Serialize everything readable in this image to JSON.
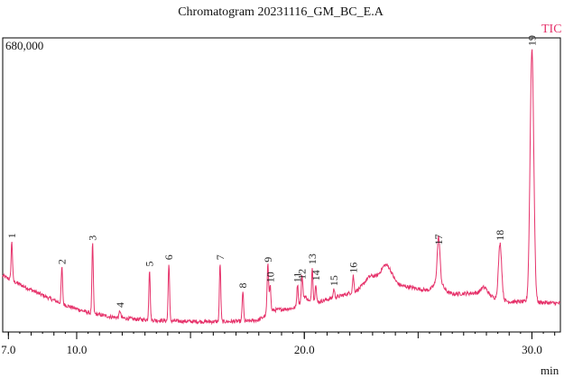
{
  "chart_data": {
    "type": "line",
    "title": "Chromatogram 20231116_GM_BC_E.A",
    "series_name": "TIC",
    "y_max_label": "680,000",
    "xlabel": "min",
    "ylabel": "",
    "xlim": [
      6.75,
      31.25
    ],
    "ylim": [
      0,
      680000
    ],
    "x_ticks": [
      7.0,
      10.0,
      20.0,
      30.0
    ],
    "x_tick_labels": [
      "7.0",
      "10.0",
      "20.0",
      "30.0"
    ],
    "line_color": "#e6336b",
    "baseline": [
      {
        "x": 6.75,
        "y": 130000
      },
      {
        "x": 7.5,
        "y": 110000
      },
      {
        "x": 8.5,
        "y": 85000
      },
      {
        "x": 9.5,
        "y": 62000
      },
      {
        "x": 10.5,
        "y": 45000
      },
      {
        "x": 11.5,
        "y": 35000
      },
      {
        "x": 12.5,
        "y": 30000
      },
      {
        "x": 13.5,
        "y": 27000
      },
      {
        "x": 14.5,
        "y": 25000
      },
      {
        "x": 15.5,
        "y": 24000
      },
      {
        "x": 16.5,
        "y": 24000
      },
      {
        "x": 17.5,
        "y": 25000
      },
      {
        "x": 18.0,
        "y": 28000
      },
      {
        "x": 18.3,
        "y": 38000
      },
      {
        "x": 18.6,
        "y": 50000
      },
      {
        "x": 19.5,
        "y": 55000
      },
      {
        "x": 20.5,
        "y": 68000
      },
      {
        "x": 21.5,
        "y": 82000
      },
      {
        "x": 22.5,
        "y": 98000
      },
      {
        "x": 23.5,
        "y": 110000
      },
      {
        "x": 24.5,
        "y": 105000
      },
      {
        "x": 25.5,
        "y": 95000
      },
      {
        "x": 26.5,
        "y": 88000
      },
      {
        "x": 27.5,
        "y": 90000
      },
      {
        "x": 28.3,
        "y": 80000
      },
      {
        "x": 29.0,
        "y": 70000
      },
      {
        "x": 29.6,
        "y": 70000
      },
      {
        "x": 30.6,
        "y": 68000
      },
      {
        "x": 31.25,
        "y": 66000
      }
    ],
    "humps": [
      {
        "x": 20.0,
        "y": 20000,
        "w": 0.15
      },
      {
        "x": 22.9,
        "y": 25000,
        "w": 0.25
      },
      {
        "x": 23.6,
        "y": 45000,
        "w": 0.25
      },
      {
        "x": 25.9,
        "y": 25000,
        "w": 0.2
      },
      {
        "x": 27.9,
        "y": 18000,
        "w": 0.15
      }
    ],
    "peaks": [
      {
        "label": "1",
        "x": 7.15,
        "y": 210000,
        "w": 0.03
      },
      {
        "label": "2",
        "x": 9.35,
        "y": 150000,
        "w": 0.03
      },
      {
        "label": "3",
        "x": 10.7,
        "y": 205000,
        "w": 0.03
      },
      {
        "label": "4",
        "x": 11.9,
        "y": 50000,
        "w": 0.03
      },
      {
        "label": "5",
        "x": 13.2,
        "y": 145000,
        "w": 0.03
      },
      {
        "label": "6",
        "x": 14.05,
        "y": 160000,
        "w": 0.03
      },
      {
        "label": "7",
        "x": 16.3,
        "y": 160000,
        "w": 0.03
      },
      {
        "label": "8",
        "x": 17.3,
        "y": 95000,
        "w": 0.03
      },
      {
        "label": "9",
        "x": 18.4,
        "y": 155000,
        "w": 0.035
      },
      {
        "label": "10",
        "x": 18.5,
        "y": 108000,
        "w": 0.03
      },
      {
        "label": "11",
        "x": 19.7,
        "y": 108000,
        "w": 0.03
      },
      {
        "label": "12",
        "x": 19.9,
        "y": 115000,
        "w": 0.03
      },
      {
        "label": "13",
        "x": 20.35,
        "y": 150000,
        "w": 0.03
      },
      {
        "label": "14",
        "x": 20.5,
        "y": 112000,
        "w": 0.03
      },
      {
        "label": "15",
        "x": 21.3,
        "y": 100000,
        "w": 0.03
      },
      {
        "label": "16",
        "x": 22.15,
        "y": 130000,
        "w": 0.03
      },
      {
        "label": "17",
        "x": 25.9,
        "y": 195000,
        "w": 0.06
      },
      {
        "label": "18",
        "x": 28.6,
        "y": 205000,
        "w": 0.07
      },
      {
        "label": "19",
        "x": 30.0,
        "y": 655000,
        "w": 0.08
      }
    ]
  }
}
